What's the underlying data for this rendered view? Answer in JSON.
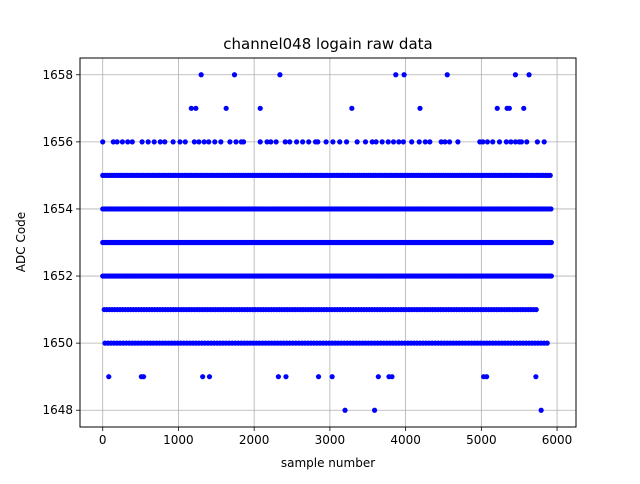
{
  "chart_data": {
    "type": "scatter",
    "title": "channel048 logain raw data",
    "xlabel": "sample number",
    "ylabel": "ADC Code",
    "xlim": [
      -300,
      6250
    ],
    "ylim": [
      1647.5,
      1658.5
    ],
    "xticks": [
      0,
      1000,
      2000,
      3000,
      4000,
      5000,
      6000
    ],
    "yticks": [
      1648,
      1650,
      1652,
      1654,
      1656,
      1658
    ],
    "grid": true,
    "marker_color": "#0000ff",
    "series": [
      {
        "levels": [
          {
            "y": 1658,
            "x": [
              1300,
              1740,
              2340,
              3870,
              3980,
              4550,
              5450,
              5630
            ]
          },
          {
            "y": 1657,
            "x": [
              1170,
              1230,
              1630,
              2080,
              3290,
              4190,
              5210,
              5340,
              5370,
              5560
            ]
          },
          {
            "y": 1656,
            "x": [
              0,
              140,
              190,
              260,
              330,
              390,
              520,
              600,
              680,
              760,
              820,
              930,
              1020,
              1090,
              1210,
              1270,
              1340,
              1400,
              1480,
              1560,
              1680,
              1760,
              1830,
              1860,
              2080,
              2170,
              2220,
              2290,
              2410,
              2470,
              2560,
              2640,
              2720,
              2810,
              2840,
              2950,
              3040,
              3130,
              3220,
              3360,
              3470,
              3560,
              3610,
              3690,
              3770,
              3840,
              3910,
              3970,
              4080,
              4180,
              4260,
              4320,
              4470,
              4520,
              4580,
              4690,
              4980,
              5020,
              5080,
              5150,
              5240,
              5330,
              5390,
              5450,
              5500,
              5530,
              5600,
              5740,
              5830
            ]
          },
          {
            "y": 1655,
            "x_range": [
              0,
              5920
            ],
            "x_step": 30
          },
          {
            "y": 1654,
            "x_range": [
              0,
              5920
            ],
            "x_step": 20
          },
          {
            "y": 1653,
            "x_range": [
              0,
              5930
            ],
            "x_step": 15
          },
          {
            "y": 1652,
            "x_range": [
              0,
              5930
            ],
            "x_step": 15
          },
          {
            "y": 1651,
            "x_range": [
              20,
              5740
            ],
            "x_step": 35
          },
          {
            "y": 1650,
            "x_range": [
              30,
              5890
            ],
            "x_step": 40
          },
          {
            "y": 1649,
            "x": [
              80,
              510,
              540,
              1320,
              1410,
              2320,
              2420,
              2850,
              3030,
              3640,
              3780,
              3820,
              5030,
              5070,
              5720
            ]
          },
          {
            "y": 1648,
            "x": [
              3200,
              3590,
              5790
            ]
          }
        ]
      }
    ]
  }
}
